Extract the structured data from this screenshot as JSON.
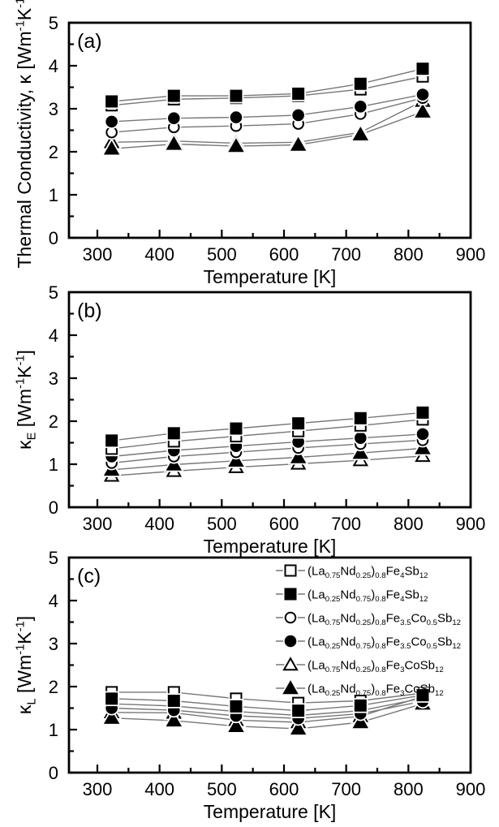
{
  "figure": {
    "background": "#ffffff",
    "x_points": [
      323,
      423,
      523,
      623,
      723,
      823
    ]
  },
  "colors": {
    "frame": "#000000",
    "marker": "#000000",
    "line": "#777777",
    "background": "#ffffff"
  },
  "chart_data": [
    {
      "panel": "(a)",
      "type": "line",
      "xlabel": "Temperature [K]",
      "ylabel": "Thermal Conductivity, κ [Wm^{-1}K^{-1}]",
      "xlim": [
        254,
        900
      ],
      "ylim": [
        0,
        5
      ],
      "xticks": [
        300,
        400,
        500,
        600,
        700,
        800,
        900
      ],
      "yticks": [
        0,
        1,
        2,
        3,
        4,
        5
      ],
      "grid": false,
      "legend": false,
      "x": [
        323,
        423,
        523,
        623,
        723,
        823
      ],
      "series": [
        {
          "name": "(La_{0.75}Nd_{0.25})_{0.8}Fe_{4}Sb_{12}",
          "marker": "square-open",
          "values": [
            3.08,
            3.22,
            3.25,
            3.3,
            3.45,
            3.75
          ]
        },
        {
          "name": "(La_{0.25}Nd_{0.75})_{0.8}Fe_{4}Sb_{12}",
          "marker": "square-filled",
          "values": [
            3.17,
            3.3,
            3.3,
            3.35,
            3.58,
            3.93
          ]
        },
        {
          "name": "(La_{0.75}Nd_{0.25})_{0.8}Fe_{3.5}Co_{0.5}Sb_{12}",
          "marker": "circle-open",
          "values": [
            2.45,
            2.57,
            2.6,
            2.65,
            2.88,
            3.25
          ]
        },
        {
          "name": "(La_{0.25}Nd_{0.75})_{0.8}Fe_{3.5}Co_{0.5}Sb_{12}",
          "marker": "circle-filled",
          "values": [
            2.7,
            2.78,
            2.8,
            2.85,
            3.05,
            3.33
          ]
        },
        {
          "name": "(La_{0.75}Nd_{0.25})_{0.8}Fe_{3}CoSb_{12}",
          "marker": "triangle-open",
          "values": [
            2.22,
            2.25,
            2.2,
            2.22,
            2.45,
            3.18
          ]
        },
        {
          "name": "(La_{0.25}Nd_{0.75})_{0.8}Fe_{3}CoSb_{12}",
          "marker": "triangle-filled",
          "values": [
            2.07,
            2.18,
            2.13,
            2.16,
            2.4,
            2.93
          ]
        }
      ]
    },
    {
      "panel": "(b)",
      "type": "line",
      "xlabel": "Temperature [K]",
      "ylabel": "κ_{E} [Wm^{-1}K^{-1}]",
      "xlim": [
        254,
        900
      ],
      "ylim": [
        0,
        5
      ],
      "xticks": [
        300,
        400,
        500,
        600,
        700,
        800,
        900
      ],
      "yticks": [
        0,
        1,
        2,
        3,
        4,
        5
      ],
      "grid": false,
      "legend": false,
      "x": [
        323,
        423,
        523,
        623,
        723,
        823
      ],
      "series": [
        {
          "name": "(La_{0.75}Nd_{0.25})_{0.8}Fe_{4}Sb_{12}",
          "marker": "square-open",
          "values": [
            1.36,
            1.53,
            1.65,
            1.77,
            1.9,
            2.04
          ]
        },
        {
          "name": "(La_{0.25}Nd_{0.75})_{0.8}Fe_{4}Sb_{12}",
          "marker": "square-filled",
          "values": [
            1.55,
            1.72,
            1.83,
            1.95,
            2.07,
            2.2
          ]
        },
        {
          "name": "(La_{0.75}Nd_{0.25})_{0.8}Fe_{3.5}Co_{0.5}Sb_{12}",
          "marker": "circle-open",
          "values": [
            1.03,
            1.18,
            1.28,
            1.38,
            1.47,
            1.56
          ]
        },
        {
          "name": "(La_{0.25}Nd_{0.75})_{0.8}Fe_{3.5}Co_{0.5}Sb_{12}",
          "marker": "circle-filled",
          "values": [
            1.18,
            1.32,
            1.42,
            1.52,
            1.61,
            1.7
          ]
        },
        {
          "name": "(La_{0.75}Nd_{0.25})_{0.8}Fe_{3}CoSb_{12}",
          "marker": "triangle-open",
          "values": [
            0.73,
            0.84,
            0.93,
            1.01,
            1.09,
            1.19
          ]
        },
        {
          "name": "(La_{0.25}Nd_{0.75})_{0.8}Fe_{3}CoSb_{12}",
          "marker": "triangle-filled",
          "values": [
            0.87,
            0.99,
            1.08,
            1.16,
            1.26,
            1.37
          ]
        }
      ]
    },
    {
      "panel": "(c)",
      "type": "line",
      "xlabel": "Temperature [K]",
      "ylabel": "κ_{L} [Wm^{-1}K^{-1}]",
      "xlim": [
        254,
        900
      ],
      "ylim": [
        0,
        5
      ],
      "xticks": [
        300,
        400,
        500,
        600,
        700,
        800,
        900
      ],
      "yticks": [
        0,
        1,
        2,
        3,
        4,
        5
      ],
      "grid": false,
      "legend": true,
      "legend_position": "top-right-inside",
      "x": [
        323,
        423,
        523,
        623,
        723,
        823
      ],
      "series": [
        {
          "name": "(La_{0.75}Nd_{0.25})_{0.8}Fe_{4}Sb_{12}",
          "marker": "square-open",
          "values": [
            1.87,
            1.87,
            1.72,
            1.62,
            1.67,
            1.85
          ]
        },
        {
          "name": "(La_{0.25}Nd_{0.75})_{0.8}Fe_{4}Sb_{12}",
          "marker": "square-filled",
          "values": [
            1.72,
            1.67,
            1.54,
            1.44,
            1.56,
            1.8
          ]
        },
        {
          "name": "(La_{0.75}Nd_{0.25})_{0.8}Fe_{3.5}Co_{0.5}Sb_{12}",
          "marker": "circle-open",
          "values": [
            1.6,
            1.55,
            1.42,
            1.33,
            1.44,
            1.73
          ]
        },
        {
          "name": "(La_{0.25}Nd_{0.75})_{0.8}Fe_{3.5}Co_{0.5}Sb_{12}",
          "marker": "circle-filled",
          "values": [
            1.5,
            1.45,
            1.32,
            1.26,
            1.37,
            1.66
          ]
        },
        {
          "name": "(La_{0.75}Nd_{0.25})_{0.8}Fe_{3}CoSb_{12}",
          "marker": "triangle-open",
          "values": [
            1.4,
            1.39,
            1.22,
            1.17,
            1.31,
            1.77
          ]
        },
        {
          "name": "(La_{0.25}Nd_{0.75})_{0.8}Fe_{3}CoSb_{12}",
          "marker": "triangle-filled",
          "values": [
            1.27,
            1.21,
            1.08,
            1.02,
            1.17,
            1.6
          ]
        }
      ]
    }
  ]
}
